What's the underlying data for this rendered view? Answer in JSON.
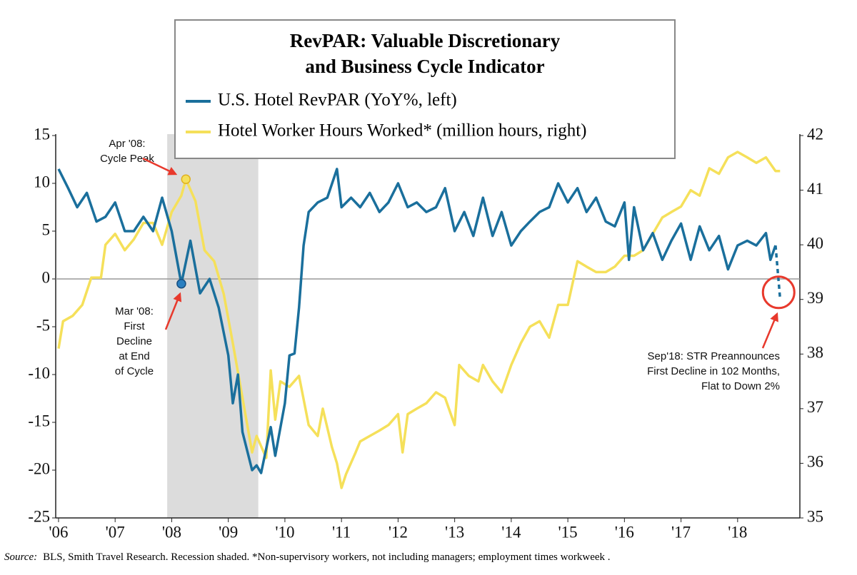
{
  "chart_data": {
    "type": "line",
    "title": [
      "RevPAR: Valuable Discretionary",
      "and Business Cycle Indicator"
    ],
    "xlim": [
      2005.95,
      2019.1
    ],
    "xticks": [
      {
        "value": 2006,
        "label": "'06"
      },
      {
        "value": 2007,
        "label": "'07"
      },
      {
        "value": 2008,
        "label": "'08"
      },
      {
        "value": 2009,
        "label": "'09"
      },
      {
        "value": 2010,
        "label": "'10"
      },
      {
        "value": 2011,
        "label": "'11"
      },
      {
        "value": 2012,
        "label": "'12"
      },
      {
        "value": 2013,
        "label": "'13"
      },
      {
        "value": 2014,
        "label": "'14"
      },
      {
        "value": 2015,
        "label": "'15"
      },
      {
        "value": 2016,
        "label": "'16"
      },
      {
        "value": 2017,
        "label": "'17"
      },
      {
        "value": 2018,
        "label": "'18"
      }
    ],
    "ylim": [
      -25,
      15
    ],
    "yticks": [
      15,
      10,
      5,
      0,
      -5,
      -10,
      -15,
      -20,
      -25
    ],
    "y2lim": [
      35,
      42
    ],
    "y2ticks": [
      42,
      41,
      40,
      39,
      38,
      37,
      36,
      35
    ],
    "recession": [
      2007.92,
      2009.53
    ],
    "series": [
      {
        "name": "U.S. Hotel RevPAR (YoY%, left)",
        "color": "#1a6f9c",
        "axis": "y",
        "x": [
          2006.0,
          2006.17,
          2006.33,
          2006.5,
          2006.67,
          2006.83,
          2007.0,
          2007.17,
          2007.33,
          2007.5,
          2007.67,
          2007.83,
          2008.0,
          2008.17,
          2008.33,
          2008.5,
          2008.67,
          2008.83,
          2009.0,
          2009.08,
          2009.17,
          2009.25,
          2009.42,
          2009.5,
          2009.58,
          2009.75,
          2009.83,
          2010.0,
          2010.08,
          2010.17,
          2010.25,
          2010.33,
          2010.42,
          2010.58,
          2010.75,
          2010.92,
          2011.0,
          2011.17,
          2011.33,
          2011.5,
          2011.67,
          2011.83,
          2012.0,
          2012.17,
          2012.33,
          2012.5,
          2012.67,
          2012.83,
          2013.0,
          2013.17,
          2013.33,
          2013.5,
          2013.67,
          2013.83,
          2014.0,
          2014.17,
          2014.33,
          2014.5,
          2014.67,
          2014.83,
          2015.0,
          2015.17,
          2015.33,
          2015.5,
          2015.67,
          2015.83,
          2016.0,
          2016.08,
          2016.17,
          2016.33,
          2016.5,
          2016.67,
          2016.83,
          2017.0,
          2017.17,
          2017.33,
          2017.5,
          2017.67,
          2017.83,
          2018.0,
          2018.17,
          2018.33,
          2018.5,
          2018.58,
          2018.67,
          2018.75
        ],
        "values": [
          11.5,
          9.5,
          7.5,
          9,
          6,
          6.5,
          8,
          5,
          5,
          6.5,
          5,
          8.5,
          5,
          -0.5,
          4,
          -1.5,
          0,
          -3,
          -8,
          -13,
          -10,
          -16,
          -20,
          -19.5,
          -20.3,
          -15.5,
          -18.5,
          -13,
          -8,
          -7.8,
          -3,
          3.5,
          7,
          8,
          8.5,
          11.5,
          7.5,
          8.5,
          7.5,
          9,
          7,
          8,
          10,
          7.5,
          8,
          7,
          7.5,
          9.5,
          5,
          7,
          4.5,
          8.5,
          4.5,
          7,
          3.5,
          5,
          6,
          7,
          7.5,
          10,
          8,
          9.5,
          7,
          8.5,
          6,
          5.5,
          8,
          2,
          7.5,
          3,
          4.8,
          2,
          4,
          5.8,
          2,
          5.5,
          3,
          4.5,
          1,
          3.5,
          4,
          3.5,
          4.8,
          2,
          3.5,
          -2
        ]
      },
      {
        "name": "Hotel Worker Hours Worked* (million hours, right)",
        "color": "#f5e05a",
        "axis": "y2",
        "x": [
          2006.0,
          2006.08,
          2006.25,
          2006.42,
          2006.58,
          2006.75,
          2006.83,
          2007.0,
          2007.17,
          2007.33,
          2007.5,
          2007.67,
          2007.83,
          2008.0,
          2008.17,
          2008.25,
          2008.42,
          2008.58,
          2008.75,
          2008.92,
          2009.08,
          2009.25,
          2009.42,
          2009.5,
          2009.67,
          2009.75,
          2009.83,
          2009.92,
          2010.08,
          2010.25,
          2010.42,
          2010.58,
          2010.67,
          2010.83,
          2010.92,
          2011.0,
          2011.08,
          2011.25,
          2011.33,
          2011.5,
          2011.67,
          2011.83,
          2012.0,
          2012.08,
          2012.17,
          2012.33,
          2012.5,
          2012.67,
          2012.83,
          2013.0,
          2013.08,
          2013.25,
          2013.42,
          2013.5,
          2013.67,
          2013.83,
          2014.0,
          2014.17,
          2014.33,
          2014.5,
          2014.67,
          2014.83,
          2015.0,
          2015.17,
          2015.33,
          2015.5,
          2015.67,
          2015.83,
          2016.0,
          2016.17,
          2016.33,
          2016.5,
          2016.67,
          2016.83,
          2017.0,
          2017.17,
          2017.33,
          2017.5,
          2017.67,
          2017.83,
          2018.0,
          2018.17,
          2018.33,
          2018.5,
          2018.67,
          2018.75
        ],
        "values": [
          38.1,
          38.6,
          38.7,
          38.9,
          39.4,
          39.4,
          40.0,
          40.2,
          39.9,
          40.1,
          40.4,
          40.4,
          40.0,
          40.6,
          40.9,
          41.2,
          40.8,
          39.9,
          39.7,
          39.1,
          38.2,
          37.2,
          36.2,
          36.5,
          36.1,
          37.7,
          36.8,
          37.5,
          37.4,
          37.6,
          36.7,
          36.5,
          37.0,
          36.3,
          36.0,
          35.55,
          35.8,
          36.2,
          36.4,
          36.5,
          36.6,
          36.7,
          36.9,
          36.2,
          36.9,
          37.0,
          37.1,
          37.3,
          37.2,
          36.7,
          37.8,
          37.6,
          37.5,
          37.8,
          37.5,
          37.3,
          37.8,
          38.2,
          38.5,
          38.6,
          38.3,
          38.9,
          38.9,
          39.7,
          39.6,
          39.5,
          39.5,
          39.6,
          39.8,
          39.8,
          39.9,
          40.2,
          40.5,
          40.6,
          40.7,
          41.0,
          40.9,
          41.4,
          41.3,
          41.6,
          41.7,
          41.6,
          41.5,
          41.6,
          41.35,
          41.35
        ]
      }
    ],
    "annotations": [
      {
        "lines": [
          "Apr '08:",
          "Cycle Peak"
        ]
      },
      {
        "lines": [
          "Mar '08:",
          "First",
          "Decline",
          "at End",
          "of Cycle"
        ]
      },
      {
        "lines": [
          "Sep'18: STR Preannounces",
          "First Decline in 102 Months,",
          "Flat to Down 2%"
        ]
      }
    ],
    "source": {
      "label": "Source:",
      "text": "BLS, Smith Travel Research. Recession shaded. *Non-supervisory workers, not including managers; employment times workweek ."
    }
  }
}
